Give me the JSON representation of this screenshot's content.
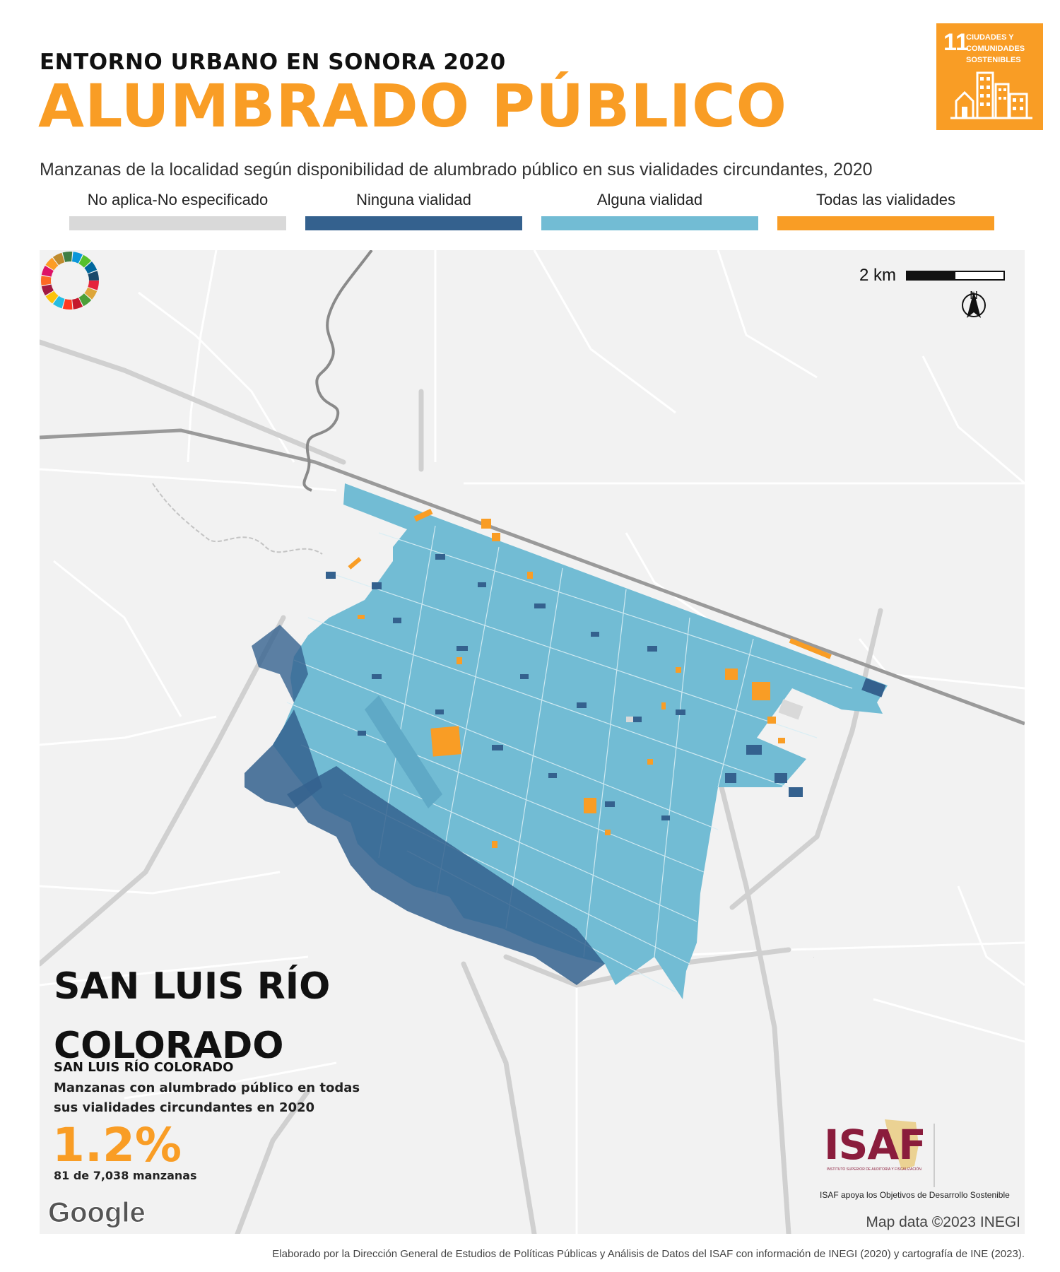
{
  "header": {
    "kicker": "ENTORNO URBANO EN SONORA 2020",
    "title": "ALUMBRADO PÚBLICO",
    "subtitle": "Manzanas de la localidad según disponibilidad de alumbrado público en sus vialidades circundantes, 2020"
  },
  "sdg_badge": {
    "number": "11",
    "text": "CIUDADES Y COMUNIDADES SOSTENIBLES",
    "color": "#F99D25",
    "icon": "city-buildings-icon"
  },
  "legend": [
    {
      "label": "No aplica-No especificado",
      "color": "#D9D9D9"
    },
    {
      "label": "Ninguna vialidad",
      "color": "#34618E"
    },
    {
      "label": "Alguna vialidad",
      "color": "#72BCD4"
    },
    {
      "label": "Todas las vialidades",
      "color": "#F99D25"
    }
  ],
  "map": {
    "scale_label": "2 km",
    "north_label": "N",
    "attribution": "Map data ©2023 INEGI",
    "provider_logo": "Google",
    "background_color": "#F2F2F2",
    "road_color": "#FFFFFF",
    "highway_color": "#D0D0D0",
    "river_color": "#9A9A9A"
  },
  "locality": {
    "name": "SAN LUIS RÍO COLORADO",
    "municipality": "SAN LUIS RÍO COLORADO",
    "stat_description": "Manzanas con alumbrado público en todas sus vialidades circundantes en 2020",
    "stat_value": "1.2%",
    "stat_count": "81 de 7,038 manzanas"
  },
  "logos": {
    "isaf": "ISAF",
    "isaf_subtitle": "INSTITUTO SUPERIOR DE AUDITORÍA Y FISCALIZACIÓN",
    "isaf_caption": "ISAF apoya los Objetivos de Desarrollo Sostenible",
    "isaf_color": "#8A1C3C"
  },
  "footer": "Elaborado por la Dirección General de Estudios de Políticas Públicas y Análisis de Datos del ISAF con información de INEGI (2020) y cartografía de INE (2023)."
}
